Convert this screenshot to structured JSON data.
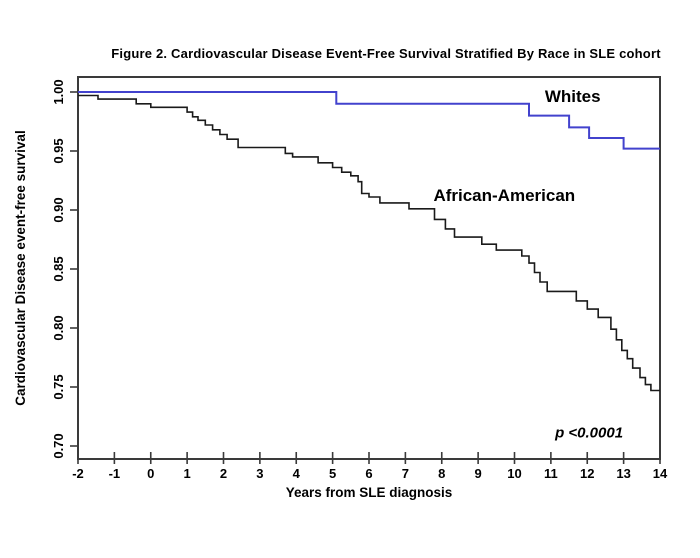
{
  "chart_data": {
    "type": "line",
    "subtype": "kaplan-meier-step-survival",
    "title": "Figure 2. Cardiovascular Disease Event-Free Survival Stratified By Race in SLE cohort",
    "xlabel": "Years from SLE diagnosis",
    "ylabel": "Cardiovascular Disease event-free survival",
    "xlim": [
      -2,
      14
    ],
    "ylim": [
      0.7,
      1.0
    ],
    "x_ticks": [
      -2,
      -1,
      0,
      1,
      2,
      3,
      4,
      5,
      6,
      7,
      8,
      9,
      10,
      11,
      12,
      13,
      14
    ],
    "x_tick_labels": [
      "-2",
      "-1",
      "0",
      "1",
      "2",
      "3",
      "4",
      "5",
      "6",
      "7",
      "8",
      "9",
      "10",
      "11",
      "12",
      "13",
      "14"
    ],
    "y_ticks": [
      0.7,
      0.75,
      0.8,
      0.85,
      0.9,
      0.95,
      1.0
    ],
    "y_tick_labels": [
      "0.70",
      "0.75",
      "0.80",
      "0.85",
      "0.90",
      "0.95",
      "1.00"
    ],
    "grid": false,
    "legend_position": "inline-labels",
    "annotation": {
      "text": "p <0.0001",
      "x": 12.05,
      "y": 0.711
    },
    "series": [
      {
        "name": "Whites",
        "color": "#4242cd",
        "label_x": 11.6,
        "label_y": 0.996,
        "points": [
          [
            -2.0,
            1.0
          ],
          [
            5.1,
            0.99
          ],
          [
            10.4,
            0.98
          ],
          [
            11.5,
            0.97
          ],
          [
            12.05,
            0.961
          ],
          [
            13.0,
            0.952
          ],
          [
            14.0,
            0.952
          ]
        ]
      },
      {
        "name": "African-American",
        "color": "#1a1a1a",
        "label_x": 9.72,
        "label_y": 0.912,
        "points": [
          [
            -2.0,
            0.997
          ],
          [
            -1.45,
            0.994
          ],
          [
            -0.4,
            0.99
          ],
          [
            0.0,
            0.987
          ],
          [
            1.0,
            0.983
          ],
          [
            1.15,
            0.979
          ],
          [
            1.3,
            0.976
          ],
          [
            1.5,
            0.972
          ],
          [
            1.7,
            0.968
          ],
          [
            1.9,
            0.964
          ],
          [
            2.1,
            0.96
          ],
          [
            2.4,
            0.953
          ],
          [
            3.7,
            0.948
          ],
          [
            3.9,
            0.945
          ],
          [
            4.6,
            0.94
          ],
          [
            5.0,
            0.936
          ],
          [
            5.25,
            0.932
          ],
          [
            5.5,
            0.929
          ],
          [
            5.7,
            0.924
          ],
          [
            5.8,
            0.914
          ],
          [
            6.0,
            0.911
          ],
          [
            6.3,
            0.906
          ],
          [
            7.1,
            0.901
          ],
          [
            7.8,
            0.892
          ],
          [
            8.1,
            0.884
          ],
          [
            8.35,
            0.877
          ],
          [
            9.1,
            0.871
          ],
          [
            9.5,
            0.866
          ],
          [
            10.2,
            0.861
          ],
          [
            10.4,
            0.855
          ],
          [
            10.55,
            0.847
          ],
          [
            10.7,
            0.839
          ],
          [
            10.9,
            0.831
          ],
          [
            11.7,
            0.823
          ],
          [
            12.0,
            0.816
          ],
          [
            12.3,
            0.809
          ],
          [
            12.65,
            0.799
          ],
          [
            12.8,
            0.79
          ],
          [
            12.95,
            0.781
          ],
          [
            13.1,
            0.774
          ],
          [
            13.25,
            0.766
          ],
          [
            13.45,
            0.758
          ],
          [
            13.6,
            0.752
          ],
          [
            13.75,
            0.747
          ],
          [
            14.0,
            0.747
          ]
        ]
      }
    ],
    "colors": {
      "axis": "#3a3a3a",
      "text": "#000000",
      "background": "#ffffff"
    }
  }
}
